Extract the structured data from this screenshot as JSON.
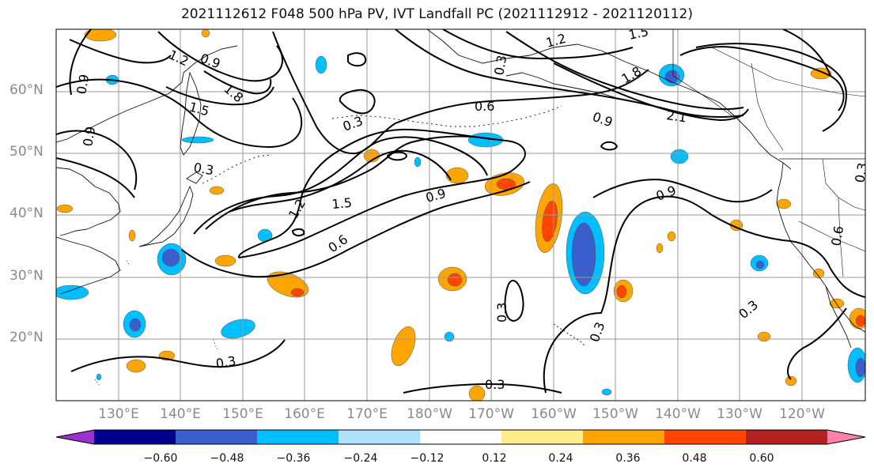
{
  "title": "2021112612 F048 500 hPa PV, IVT Landfall PC (2021112912 - 2021120112)",
  "lat_labels": [
    "60°N",
    "50°N",
    "40°N",
    "30°N",
    "20°N"
  ],
  "lon_labels": [
    "130°E",
    "140°E",
    "150°E",
    "160°E",
    "170°E",
    "180°W",
    "170°W",
    "160°W",
    "150°W",
    "140°W",
    "130°W",
    "120°W"
  ],
  "contour_labels": [
    "1.2",
    "0.9",
    "1.5",
    "1.8",
    "0.9",
    "1.5",
    "1.2",
    "1.8",
    "0.6",
    "0.9",
    "2.1",
    "0.3",
    "0.3",
    "0.9",
    "0.6",
    "1.5",
    "1.2",
    "0.9",
    "0.9",
    "0.6",
    "0.3",
    "0.3",
    "0.3",
    "0.3",
    "0.3",
    "0.3",
    "0.3"
  ],
  "colorbar": {
    "ticks": [
      "−0.60",
      "−0.48",
      "−0.36",
      "−0.24",
      "−0.12",
      "0.12",
      "0.24",
      "0.36",
      "0.48",
      "0.60"
    ],
    "colors": [
      "#9932cc",
      "#00008b",
      "#3a5fcd",
      "#00bfff",
      "#b0e2ff",
      "#ffffff",
      "#ffec8b",
      "#ffa500",
      "#ff4500",
      "#b22222",
      "#ff82ab"
    ]
  }
}
